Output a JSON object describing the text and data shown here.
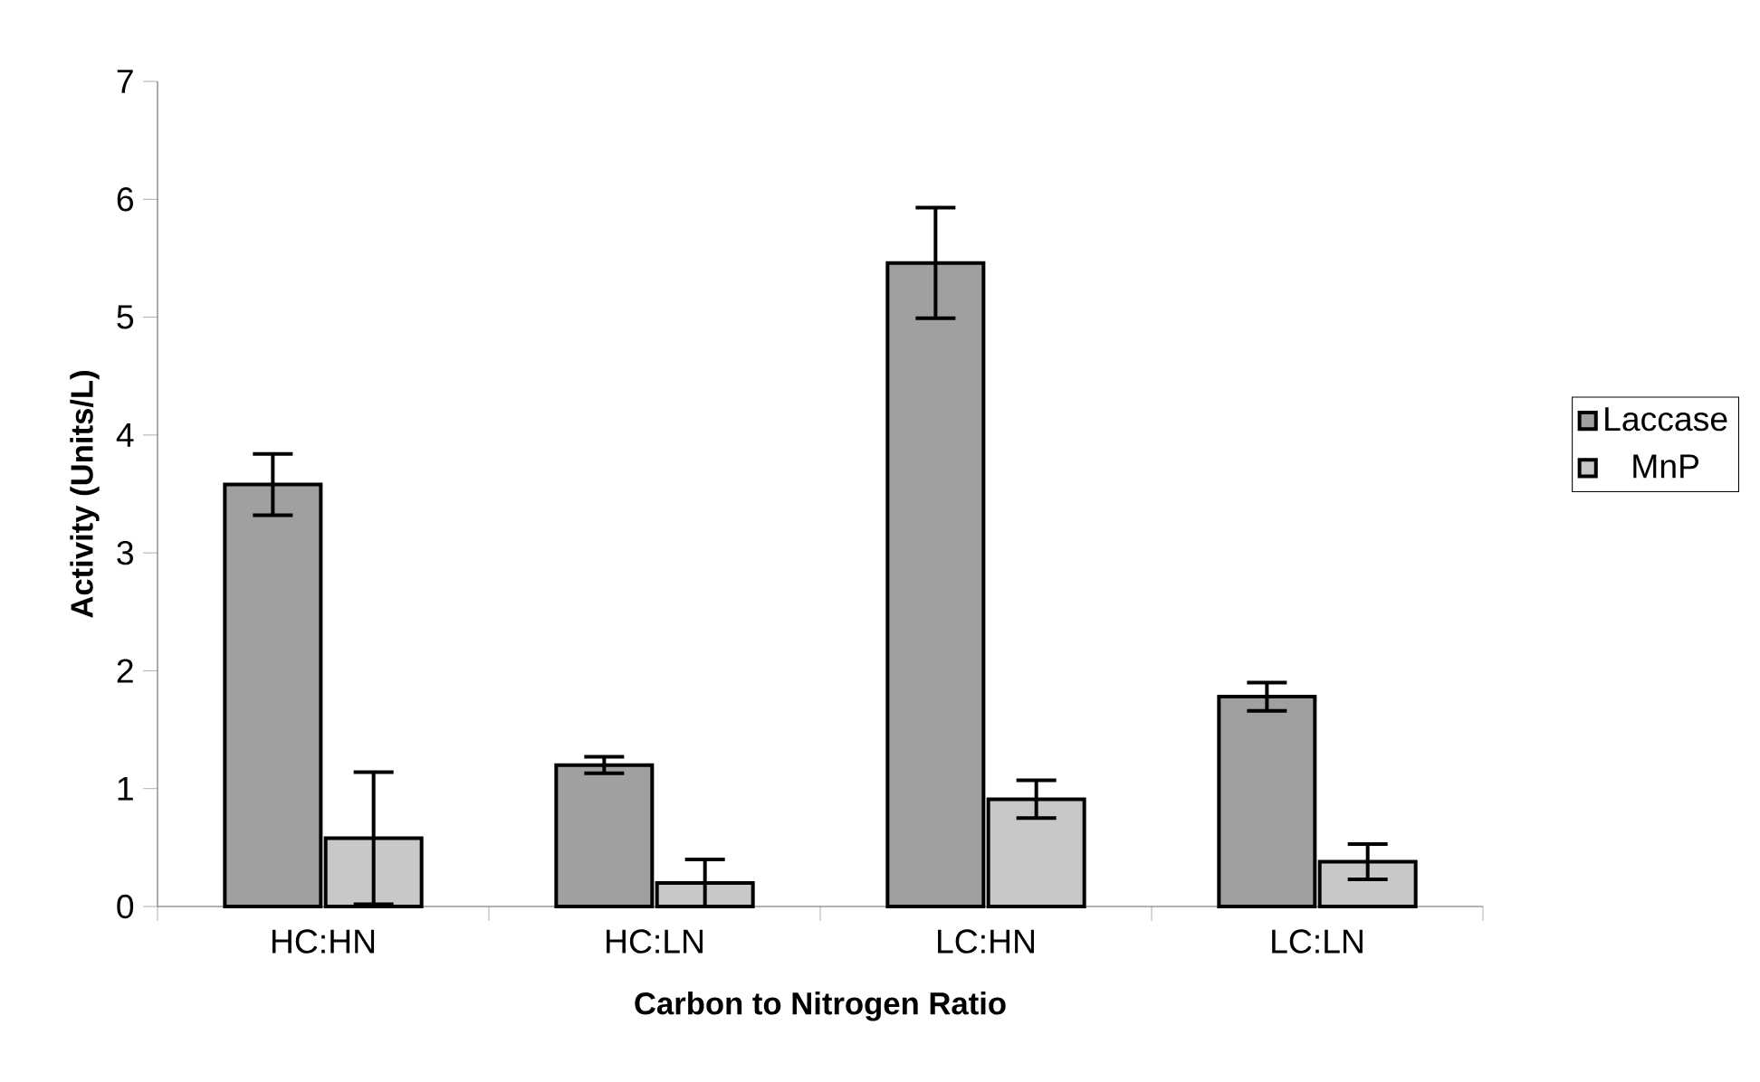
{
  "chart_data": {
    "type": "bar",
    "xlabel": "Carbon to Nitrogen Ratio",
    "ylabel": "Activity (Units/L)",
    "categories": [
      "HC:HN",
      "HC:LN",
      "LC:HN",
      "LC:LN"
    ],
    "series": [
      {
        "name": "Laccase",
        "color": "#a0a0a0",
        "values": [
          3.58,
          1.2,
          5.46,
          1.78
        ],
        "errors": [
          0.26,
          0.07,
          0.47,
          0.12
        ]
      },
      {
        "name": "MnP",
        "color": "#c8c8c8",
        "values": [
          0.58,
          0.2,
          0.91,
          0.38
        ],
        "errors": [
          0.56,
          0.2,
          0.16,
          0.15
        ]
      }
    ],
    "ylim": [
      0,
      7
    ],
    "yticks": [
      0,
      1,
      2,
      3,
      4,
      5,
      6,
      7
    ],
    "grid": false,
    "legend": "right"
  }
}
